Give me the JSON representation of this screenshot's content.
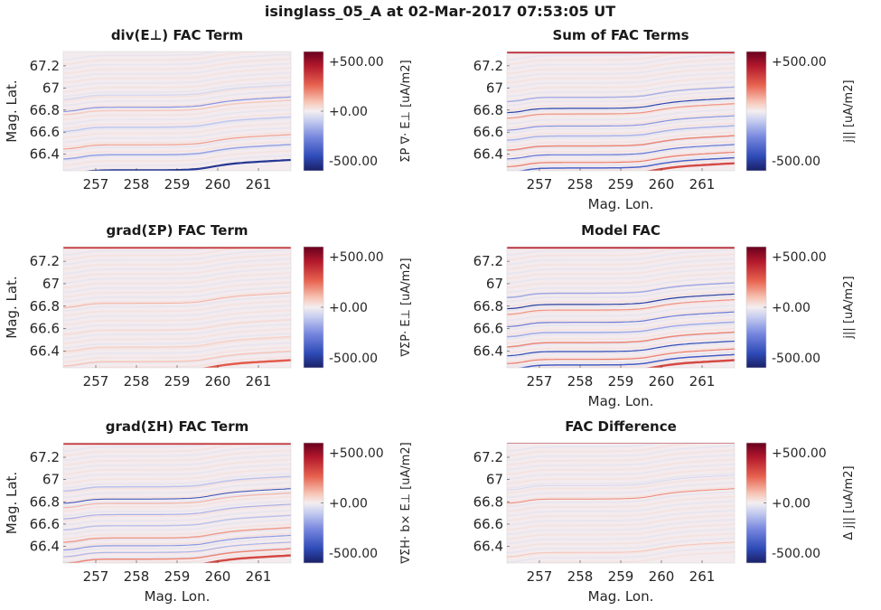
{
  "page_title": "isinglass_05_A at 02-Mar-2017 07:53:05 UT",
  "chart_data": [
    {
      "type": "heatmap",
      "title": "div(E⊥) FAC Term",
      "xlabel": "",
      "ylabel": "Mag. Lat.",
      "colorbar_label": "ΣP ∇· E⊥ [uA/m2]",
      "x_ticks": [
        "257",
        "258",
        "259",
        "260",
        "261"
      ],
      "y_ticks": [
        "66.4",
        "66.6",
        "66.8",
        "67",
        "67.2"
      ],
      "xlim": [
        256.2,
        261.8
      ],
      "ylim": [
        66.25,
        67.33
      ],
      "clim": [
        -600,
        600
      ],
      "colorbar_ticks": [
        "+500.00",
        "+0.00",
        "-500.00"
      ],
      "arc_pattern": [
        [
          66.27,
          -520,
          0.018
        ],
        [
          66.41,
          -200,
          0.012
        ],
        [
          66.5,
          160,
          0.01
        ],
        [
          66.66,
          -110,
          0.012
        ],
        [
          66.81,
          80,
          0.012
        ],
        [
          66.84,
          -230,
          0.01
        ],
        [
          66.95,
          -60,
          0.012
        ]
      ]
    },
    {
      "type": "heatmap",
      "title": "Sum of FAC Terms",
      "xlabel": "Mag. Lon.",
      "ylabel": "",
      "colorbar_label": "j|| [uA/m2]",
      "x_ticks": [
        "257",
        "258",
        "259",
        "260",
        "261"
      ],
      "y_ticks": [
        "66.4",
        "66.6",
        "66.8",
        "67",
        "67.2"
      ],
      "xlim": [
        256.2,
        261.8
      ],
      "ylim": [
        66.25,
        67.33
      ],
      "clim": [
        -600,
        600
      ],
      "colorbar_ticks": [
        "+500.00",
        "-500.00"
      ],
      "arc_pattern": [
        [
          66.24,
          330,
          0.02
        ],
        [
          66.29,
          -380,
          0.012
        ],
        [
          66.34,
          220,
          0.01
        ],
        [
          66.41,
          -320,
          0.01
        ],
        [
          66.49,
          200,
          0.012
        ],
        [
          66.58,
          -160,
          0.012
        ],
        [
          66.67,
          -230,
          0.01
        ],
        [
          66.78,
          180,
          0.01
        ],
        [
          66.83,
          -480,
          0.01
        ],
        [
          66.93,
          -160,
          0.012
        ],
        [
          67.32,
          420,
          0.015
        ]
      ]
    },
    {
      "type": "heatmap",
      "title": "grad(ΣP) FAC Term",
      "xlabel": "",
      "ylabel": "Mag. Lat.",
      "colorbar_label": "∇ΣP· E⊥ [uA/m2]",
      "x_ticks": [
        "257",
        "258",
        "259",
        "260",
        "261"
      ],
      "y_ticks": [
        "66.4",
        "66.6",
        "66.8",
        "67",
        "67.2"
      ],
      "xlim": [
        256.2,
        261.8
      ],
      "ylim": [
        66.25,
        67.33
      ],
      "clim": [
        -600,
        600
      ],
      "colorbar_ticks": [
        "+500.00",
        "+0.00",
        "-500.00"
      ],
      "arc_pattern": [
        [
          66.24,
          280,
          0.02
        ],
        [
          66.32,
          90,
          0.012
        ],
        [
          66.45,
          60,
          0.012
        ],
        [
          66.6,
          40,
          0.015
        ],
        [
          66.84,
          130,
          0.006
        ],
        [
          67.32,
          380,
          0.015
        ]
      ]
    },
    {
      "type": "heatmap",
      "title": "Model FAC",
      "xlabel": "Mag. Lon.",
      "ylabel": "",
      "colorbar_label": "j|| [uA/m2]",
      "x_ticks": [
        "257",
        "258",
        "259",
        "260",
        "261"
      ],
      "y_ticks": [
        "66.4",
        "66.6",
        "66.8",
        "67",
        "67.2"
      ],
      "xlim": [
        256.2,
        261.8
      ],
      "ylim": [
        66.25,
        67.33
      ],
      "clim": [
        -600,
        600
      ],
      "colorbar_ticks": [
        "+500.00",
        "+0.00",
        "-500.00"
      ],
      "arc_pattern": [
        [
          66.24,
          330,
          0.02
        ],
        [
          66.29,
          -400,
          0.012
        ],
        [
          66.34,
          220,
          0.01
        ],
        [
          66.41,
          -450,
          0.01
        ],
        [
          66.49,
          200,
          0.012
        ],
        [
          66.58,
          -180,
          0.012
        ],
        [
          66.67,
          -300,
          0.01
        ],
        [
          66.78,
          180,
          0.01
        ],
        [
          66.83,
          -500,
          0.01
        ],
        [
          66.93,
          -180,
          0.012
        ],
        [
          67.32,
          420,
          0.015
        ]
      ]
    },
    {
      "type": "heatmap",
      "title": "grad(ΣH) FAC Term",
      "xlabel": "Mag. Lon.",
      "ylabel": "Mag. Lat.",
      "colorbar_label": "∇ΣH· b× E⊥ [uA/m2]",
      "x_ticks": [
        "257",
        "258",
        "259",
        "260",
        "261"
      ],
      "y_ticks": [
        "66.4",
        "66.6",
        "66.8",
        "67",
        "67.2"
      ],
      "xlim": [
        256.2,
        261.8
      ],
      "ylim": [
        66.25,
        67.33
      ],
      "clim": [
        -600,
        600
      ],
      "colorbar_ticks": [
        "+500.00",
        "+0.00",
        "-500.00"
      ],
      "arc_pattern": [
        [
          66.24,
          330,
          0.02
        ],
        [
          66.3,
          200,
          0.012
        ],
        [
          66.36,
          -150,
          0.01
        ],
        [
          66.42,
          -220,
          0.01
        ],
        [
          66.49,
          160,
          0.012
        ],
        [
          66.6,
          -120,
          0.012
        ],
        [
          66.7,
          -160,
          0.01
        ],
        [
          66.8,
          120,
          0.01
        ],
        [
          66.84,
          -450,
          0.008
        ],
        [
          66.95,
          -120,
          0.012
        ],
        [
          67.32,
          380,
          0.015
        ]
      ]
    },
    {
      "type": "heatmap",
      "title": "FAC Difference",
      "xlabel": "Mag. Lon.",
      "ylabel": "",
      "colorbar_label": "Δ j|| [uA/m2]",
      "x_ticks": [
        "257",
        "258",
        "259",
        "260",
        "261"
      ],
      "y_ticks": [
        "66.4",
        "66.6",
        "66.8",
        "67",
        "67.2"
      ],
      "xlim": [
        256.2,
        261.8
      ],
      "ylim": [
        66.25,
        67.33
      ],
      "clim": [
        -600,
        600
      ],
      "colorbar_ticks": [
        "+500.00",
        "+0.00",
        "-500.00"
      ],
      "arc_pattern": [
        [
          66.36,
          90,
          0.006
        ],
        [
          66.84,
          200,
          0.005
        ],
        [
          66.96,
          -60,
          0.006
        ],
        [
          67.33,
          420,
          0.012
        ]
      ]
    }
  ]
}
